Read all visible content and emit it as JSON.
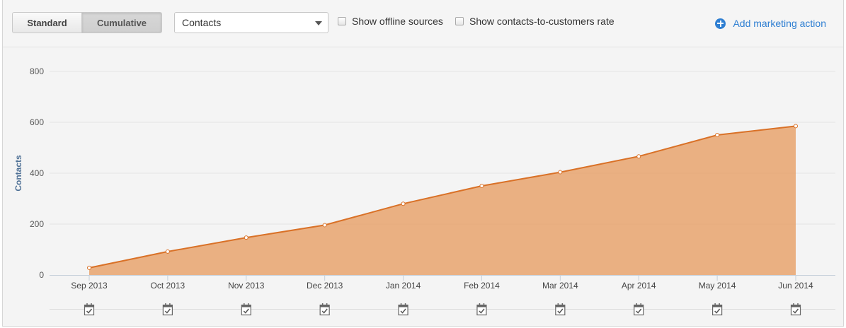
{
  "toolbar": {
    "view_toggle": {
      "standard": "Standard",
      "cumulative": "Cumulative",
      "selected": "Cumulative"
    },
    "metric_select": {
      "value": "Contacts"
    },
    "offline_sources": {
      "label": "Show offline sources",
      "checked": false
    },
    "conversion_rate": {
      "label": "Show contacts-to-customers rate",
      "checked": false
    },
    "add_action": {
      "label": "Add marketing action",
      "icon": "plus-circle-icon"
    }
  },
  "chart_data": {
    "type": "area",
    "categories": [
      "Sep 2013",
      "Oct 2013",
      "Nov 2013",
      "Dec 2013",
      "Jan 2014",
      "Feb 2014",
      "Mar 2014",
      "Apr 2014",
      "May 2014",
      "Jun 2014"
    ],
    "series": [
      {
        "values": [
          28,
          92,
          147,
          196,
          280,
          350,
          404,
          466,
          550,
          585
        ]
      }
    ],
    "ylabel": "Contacts",
    "yticks": [
      0,
      200,
      400,
      600,
      800
    ],
    "ylim": [
      0,
      800
    ],
    "grid": true,
    "colors": {
      "fill": "#e8a36d",
      "line": "#d97127",
      "axis": "#c6d0da",
      "ylabel": "#4f7196"
    },
    "marker_icon": "calendar-check-icon"
  }
}
